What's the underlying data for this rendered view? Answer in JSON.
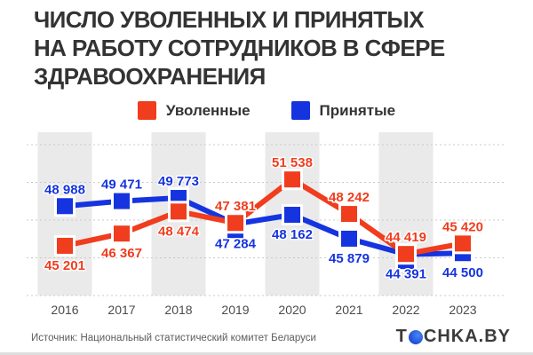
{
  "title": {
    "lines": [
      "ЧИСЛО УВОЛЕННЫХ И ПРИНЯТЫХ",
      "НА РАБОТУ СОТРУДНИКОВ В СФЕРЕ",
      "ЗДРАВООХРАНЕНИЯ"
    ]
  },
  "legend": {
    "items": [
      {
        "label": "Уволенные",
        "color": "#F03D1E"
      },
      {
        "label": "Принятые",
        "color": "#1534E0"
      }
    ]
  },
  "chart_data": {
    "type": "line",
    "title": "Число уволенных и принятых на работу сотрудников в сфере здравоохранения",
    "categories": [
      "2016",
      "2017",
      "2018",
      "2019",
      "2020",
      "2021",
      "2022",
      "2023"
    ],
    "series": [
      {
        "name": "Уволенные",
        "color": "#F03D1E",
        "values": [
          45201,
          46367,
          48474,
          47381,
          51538,
          48242,
          44419,
          45420
        ],
        "label_side": [
          "below",
          "below",
          "below",
          "above",
          "above",
          "above",
          "above",
          "above"
        ]
      },
      {
        "name": "Принятые",
        "color": "#1534E0",
        "values": [
          48988,
          49471,
          49773,
          47284,
          48162,
          45879,
          44391,
          44500
        ],
        "label_side": [
          "above",
          "above",
          "above",
          "below",
          "below",
          "below",
          "below",
          "below"
        ]
      }
    ],
    "ylim": [
      40450,
      54860
    ],
    "grid": "horizontal-dashed",
    "gridline_count": 5,
    "band_years": [
      "2016",
      "2018",
      "2020",
      "2022"
    ],
    "band_color": "#eaeaea",
    "axis_label_color": "#4b4b4b",
    "legend_position": "top",
    "value_format": "space-thousands"
  },
  "footer": {
    "source": "Источник: Национальный статистический комитет Беларуси",
    "logo": {
      "prefix": "T",
      "suffix": "CHKA.BY"
    }
  }
}
